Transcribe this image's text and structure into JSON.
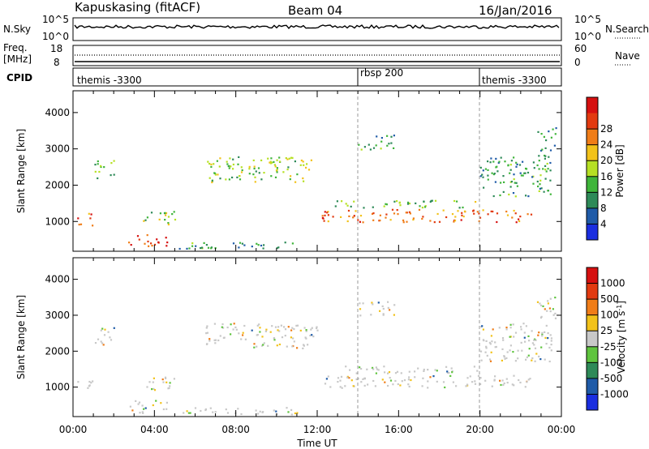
{
  "header": {
    "title": "Kapuskasing (fitACF)",
    "beam": "Beam 04",
    "date": "16/Jan/2016"
  },
  "panels": {
    "nsky": {
      "left_label": "N.Sky",
      "right_label": "N.Search",
      "left_ticks": [
        "10^5",
        "10^0"
      ],
      "right_ticks": [
        "10^5",
        "10^0"
      ]
    },
    "freq": {
      "left_label_1": "Freq.",
      "left_label_2": "[MHz]",
      "right_label": "Nave",
      "left_ticks": [
        "18",
        "8"
      ],
      "right_ticks": [
        "60",
        "0"
      ]
    },
    "cpid": {
      "label": "CPID",
      "segments": [
        {
          "name": "themis -3300",
          "start_hour": 0
        },
        {
          "name": "rbsp 200",
          "start_hour": 14
        },
        {
          "name": "themis -3300",
          "start_hour": 20
        }
      ]
    }
  },
  "chart_data": [
    {
      "type": "heatmap",
      "quantity": "power",
      "ylabel": "Slant Range [km]",
      "xlabel": "Time UT",
      "xlim": [
        0,
        24
      ],
      "ylim": [
        180,
        4600
      ],
      "x_ticks": [
        "00:00",
        "04:00",
        "08:00",
        "12:00",
        "16:00",
        "20:00",
        "00:00"
      ],
      "y_ticks": [
        "1000",
        "2000",
        "3000",
        "4000"
      ],
      "colorbar": {
        "label": "Power [dB]",
        "ticks": [
          "4",
          "8",
          "12",
          "16",
          "20",
          "24",
          "28"
        ],
        "colors": [
          "#1a2ee0",
          "#1f5ba8",
          "#2e8a58",
          "#3fb53a",
          "#b6e024",
          "#f2c21a",
          "#f07d18",
          "#e23a10",
          "#d61010"
        ]
      },
      "echo_regions": [
        {
          "t0": 0.2,
          "t1": 1.0,
          "r0": 900,
          "r1": 1250,
          "level": 0.85
        },
        {
          "t0": 2.7,
          "t1": 4.6,
          "r0": 300,
          "r1": 650,
          "level": 0.9
        },
        {
          "t0": 3.3,
          "t1": 5.0,
          "r0": 900,
          "r1": 1300,
          "level": 0.45
        },
        {
          "t0": 6.5,
          "t1": 12.0,
          "r0": 2100,
          "r1": 2800,
          "level": 0.45
        },
        {
          "t0": 12.2,
          "t1": 22.5,
          "r0": 1000,
          "r1": 1350,
          "level": 0.8
        },
        {
          "t0": 12.8,
          "t1": 20.0,
          "r0": 1400,
          "r1": 1600,
          "level": 0.4
        },
        {
          "t0": 20.0,
          "t1": 23.5,
          "r0": 1700,
          "r1": 2800,
          "level": 0.3
        },
        {
          "t0": 22.8,
          "t1": 23.7,
          "r0": 2800,
          "r1": 3600,
          "level": 0.25
        },
        {
          "t0": 14.0,
          "t1": 15.8,
          "r0": 3000,
          "r1": 3400,
          "level": 0.3
        },
        {
          "t0": 1.0,
          "t1": 2.0,
          "r0": 2200,
          "r1": 2700,
          "level": 0.4
        },
        {
          "t0": 5.0,
          "t1": 11.0,
          "r0": 250,
          "r1": 450,
          "level": 0.3
        }
      ]
    },
    {
      "type": "heatmap",
      "quantity": "velocity",
      "ylabel": "Slant Range [km]",
      "xlabel": "Time UT",
      "xlim": [
        0,
        24
      ],
      "ylim": [
        180,
        4600
      ],
      "x_ticks": [
        "00:00",
        "04:00",
        "08:00",
        "12:00",
        "16:00",
        "20:00",
        "00:00"
      ],
      "y_ticks": [
        "1000",
        "2000",
        "3000",
        "4000"
      ],
      "colorbar": {
        "label": "Velocity [m s",
        "label_sup": "-1",
        "label_end": "]",
        "ticks": [
          "1000",
          "500",
          "100",
          "25",
          "-25",
          "-100",
          "-500",
          "-1000"
        ],
        "colors": [
          "#1a2ee0",
          "#1f5ba8",
          "#2e8a58",
          "#5fc43e",
          "#c8c8c8",
          "#f2c21a",
          "#f07d18",
          "#e23a10",
          "#d61010"
        ]
      }
    }
  ],
  "xaxis": {
    "label": "Time UT",
    "ticks": [
      "00:00",
      "04:00",
      "08:00",
      "12:00",
      "16:00",
      "20:00",
      "00:00"
    ]
  }
}
